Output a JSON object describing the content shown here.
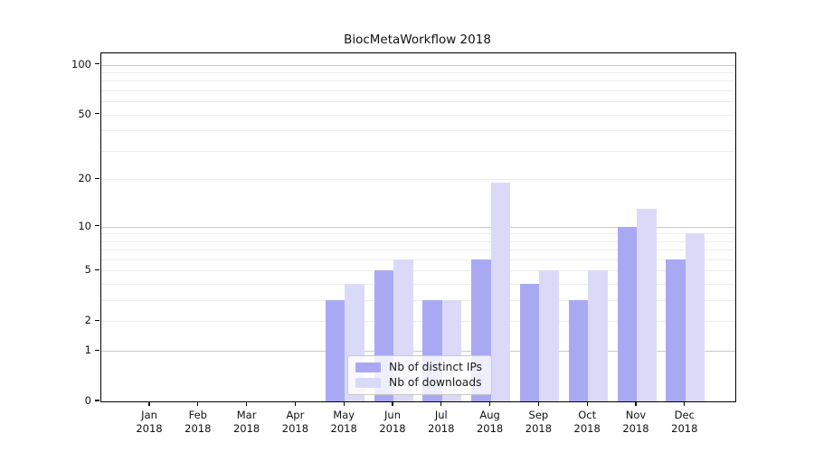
{
  "chart_data": {
    "type": "bar",
    "title": "BiocMetaWorkflow 2018",
    "categories": [
      "Jan",
      "Feb",
      "Mar",
      "Apr",
      "May",
      "Jun",
      "Jul",
      "Aug",
      "Sep",
      "Oct",
      "Nov",
      "Dec"
    ],
    "year_label": "2018",
    "series": [
      {
        "name": "Nb of distinct IPs",
        "color": "#a9a9f3",
        "values": [
          0,
          0,
          0,
          0,
          3,
          5,
          3,
          6,
          4,
          3,
          10,
          6
        ]
      },
      {
        "name": "Nb of downloads",
        "color": "#dadaf8",
        "values": [
          0,
          0,
          0,
          0,
          4,
          6,
          3,
          19,
          5,
          5,
          13,
          9
        ]
      }
    ],
    "xlabel": "",
    "ylabel": "",
    "yscale": "log1p",
    "ylim": [
      0,
      117
    ],
    "yticks": [
      100,
      50,
      20,
      10,
      5,
      2,
      1,
      0
    ],
    "major_gridlines": [
      1,
      10,
      100
    ],
    "minor_gridlines": [
      2,
      3,
      4,
      5,
      6,
      7,
      8,
      9,
      20,
      30,
      40,
      50,
      60,
      70,
      80,
      90
    ],
    "grid": true,
    "legend_position": "lower center",
    "colors": {
      "major_grid": "#c8c8c8",
      "minor_grid": "#ededed",
      "spine": "#000000",
      "text": "#111111"
    }
  }
}
